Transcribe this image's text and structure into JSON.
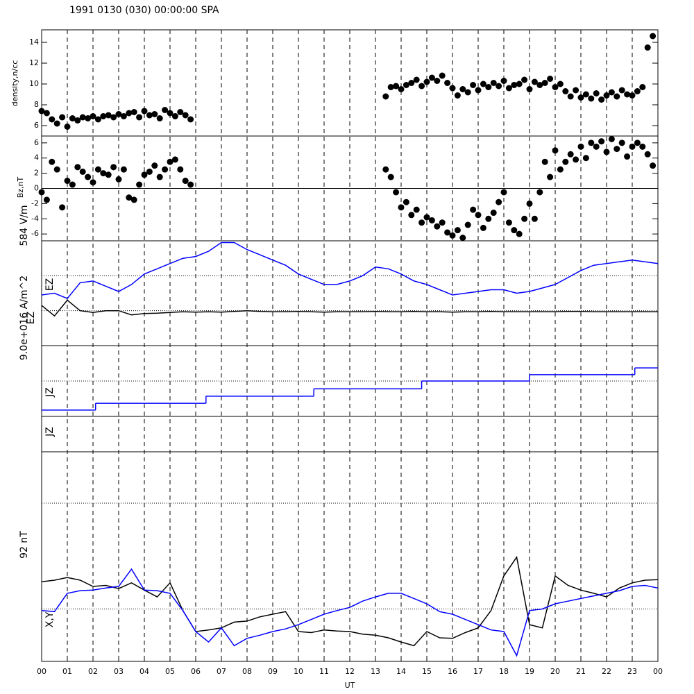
{
  "title": "1991 0130 (030) 00:00:00 SPA",
  "x_axis": {
    "label": "UT",
    "xlim": [
      0,
      24
    ],
    "vgrid": "dashed",
    "xticks": [
      {
        "value": 0,
        "label": "00"
      },
      {
        "value": 1,
        "label": "01"
      },
      {
        "value": 2,
        "label": "02"
      },
      {
        "value": 3,
        "label": "03"
      },
      {
        "value": 4,
        "label": "04"
      },
      {
        "value": 5,
        "label": "05"
      },
      {
        "value": 6,
        "label": "06"
      },
      {
        "value": 7,
        "label": "07"
      },
      {
        "value": 8,
        "label": "08"
      },
      {
        "value": 9,
        "label": "09"
      },
      {
        "value": 10,
        "label": "10"
      },
      {
        "value": 11,
        "label": "11"
      },
      {
        "value": 12,
        "label": "12"
      },
      {
        "value": 13,
        "label": "13"
      },
      {
        "value": 14,
        "label": "14"
      },
      {
        "value": 15,
        "label": "15"
      },
      {
        "value": 16,
        "label": "16"
      },
      {
        "value": 17,
        "label": "17"
      },
      {
        "value": 18,
        "label": "18"
      },
      {
        "value": 19,
        "label": "19"
      },
      {
        "value": 20,
        "label": "20"
      },
      {
        "value": 21,
        "label": "21"
      },
      {
        "value": 22,
        "label": "22"
      },
      {
        "value": 23,
        "label": "23"
      },
      {
        "value": 24,
        "label": "00"
      }
    ]
  },
  "chart_data": [
    {
      "type": "scatter",
      "ylabel": "density,n/cc",
      "color": "#000000",
      "ylim": [
        5,
        15.2
      ],
      "yticks": [
        6,
        8,
        10,
        12,
        14
      ],
      "x": [
        0,
        0.2,
        0.4,
        0.6,
        0.8,
        1,
        1.2,
        1.4,
        1.6,
        1.8,
        2,
        2.2,
        2.4,
        2.6,
        2.8,
        3,
        3.2,
        3.4,
        3.6,
        3.8,
        4,
        4.2,
        4.4,
        4.6,
        4.8,
        5,
        5.2,
        5.4,
        5.6,
        5.8,
        13.4,
        13.6,
        13.8,
        14,
        14.2,
        14.4,
        14.6,
        14.8,
        15,
        15.2,
        15.4,
        15.6,
        15.8,
        16,
        16.2,
        16.4,
        16.6,
        16.8,
        17,
        17.2,
        17.4,
        17.6,
        17.8,
        18,
        18.2,
        18.4,
        18.6,
        18.8,
        19,
        19.2,
        19.4,
        19.6,
        19.8,
        20,
        20.2,
        20.4,
        20.6,
        20.8,
        21,
        21.2,
        21.4,
        21.6,
        21.8,
        22,
        22.2,
        22.4,
        22.6,
        22.8,
        23,
        23.2,
        23.4,
        23.6,
        23.8
      ],
      "values": [
        7.4,
        7.2,
        6.6,
        6.2,
        6.8,
        5.9,
        6.7,
        6.5,
        6.8,
        6.7,
        6.9,
        6.6,
        6.9,
        7.0,
        6.8,
        7.1,
        6.9,
        7.2,
        7.3,
        6.8,
        7.4,
        7.0,
        7.1,
        6.7,
        7.5,
        7.2,
        6.9,
        7.3,
        7.0,
        6.6,
        8.8,
        9.7,
        9.8,
        9.5,
        9.9,
        10.1,
        10.4,
        9.8,
        10.2,
        10.6,
        10.3,
        10.8,
        10.1,
        9.6,
        8.9,
        9.5,
        9.2,
        9.9,
        9.4,
        10.0,
        9.7,
        10.1,
        9.8,
        10.3,
        9.6,
        9.9,
        10.0,
        10.4,
        9.5,
        10.2,
        9.9,
        10.1,
        10.5,
        9.7,
        10.0,
        9.3,
        8.8,
        9.4,
        8.7,
        9.0,
        8.6,
        9.1,
        8.5,
        8.9,
        9.2,
        8.8,
        9.4,
        9.0,
        8.9,
        9.3,
        9.7,
        13.5,
        14.6
      ]
    },
    {
      "type": "scatter",
      "ylabel": "Bz,nT",
      "color": "#000000",
      "ylim": [
        -6.9,
        6.9
      ],
      "yticks": [
        -6,
        -4,
        -2,
        0,
        2,
        4,
        6
      ],
      "zero_line": 0,
      "x": [
        0,
        0.2,
        0.4,
        0.6,
        0.8,
        1,
        1.2,
        1.4,
        1.6,
        1.8,
        2,
        2.2,
        2.4,
        2.6,
        2.8,
        3,
        3.2,
        3.4,
        3.6,
        3.8,
        4,
        4.2,
        4.4,
        4.6,
        4.8,
        5,
        5.2,
        5.4,
        5.6,
        5.8,
        13.4,
        13.6,
        13.8,
        14,
        14.2,
        14.4,
        14.6,
        14.8,
        15,
        15.2,
        15.4,
        15.6,
        15.8,
        16,
        16.2,
        16.4,
        16.6,
        16.8,
        17,
        17.2,
        17.4,
        17.6,
        17.8,
        18,
        18.2,
        18.4,
        18.6,
        18.8,
        19,
        19.2,
        19.4,
        19.6,
        19.8,
        20,
        20.2,
        20.4,
        20.6,
        20.8,
        21,
        21.2,
        21.4,
        21.6,
        21.8,
        22,
        22.2,
        22.4,
        22.6,
        22.8,
        23,
        23.2,
        23.4,
        23.6,
        23.8
      ],
      "values": [
        -0.5,
        -1.5,
        3.5,
        2.5,
        -2.5,
        1.0,
        0.5,
        2.8,
        2.2,
        1.5,
        0.8,
        2.5,
        2.0,
        1.8,
        2.8,
        1.2,
        2.5,
        -1.2,
        -1.5,
        0.5,
        1.8,
        2.2,
        3.0,
        1.5,
        2.5,
        3.5,
        3.8,
        2.5,
        1.0,
        0.5,
        2.5,
        1.5,
        -0.5,
        -2.5,
        -1.8,
        -3.5,
        -2.8,
        -4.5,
        -3.8,
        -4.2,
        -5.0,
        -4.5,
        -5.8,
        -6.2,
        -5.5,
        -6.5,
        -4.8,
        -2.8,
        -3.5,
        -5.2,
        -4.0,
        -3.2,
        -1.8,
        -0.5,
        -4.5,
        -5.5,
        -6.0,
        -4.0,
        -2.0,
        -4.0,
        -0.5,
        3.5,
        1.5,
        5.0,
        2.5,
        3.5,
        4.5,
        3.8,
        5.5,
        4.0,
        6.0,
        5.5,
        6.2,
        4.8,
        6.5,
        5.2,
        6.0,
        4.2,
        5.5,
        6.0,
        5.5,
        4.5,
        3.0
      ]
    },
    {
      "type": "line",
      "scale_label": "584 V/m",
      "ylim": [
        0,
        3
      ],
      "dotted_lines": [
        1,
        2
      ],
      "x": [
        0,
        0.5,
        1,
        1.5,
        2,
        2.5,
        3,
        3.5,
        4,
        4.5,
        5,
        5.5,
        6,
        6.5,
        7,
        7.5,
        8,
        8.5,
        9,
        9.5,
        10,
        10.5,
        11,
        11.5,
        12,
        12.5,
        13,
        13.5,
        14,
        14.5,
        15,
        15.5,
        16,
        16.5,
        17,
        17.5,
        18,
        18.5,
        19,
        19.5,
        20,
        20.5,
        21,
        21.5,
        22,
        22.5,
        23,
        23.5,
        24
      ],
      "series": [
        {
          "name": "EZ",
          "color": "#0000ff",
          "values": [
            1.45,
            1.5,
            1.35,
            1.8,
            1.85,
            1.7,
            1.55,
            1.75,
            2.05,
            2.2,
            2.35,
            2.5,
            2.55,
            2.7,
            2.95,
            2.95,
            2.75,
            2.6,
            2.45,
            2.3,
            2.05,
            1.9,
            1.75,
            1.75,
            1.85,
            2.0,
            2.25,
            2.2,
            2.05,
            1.85,
            1.75,
            1.6,
            1.45,
            1.5,
            1.55,
            1.6,
            1.6,
            1.5,
            1.55,
            1.65,
            1.75,
            1.95,
            2.15,
            2.3,
            2.35,
            2.4,
            2.45,
            2.4,
            2.35
          ]
        },
        {
          "name": "EZ",
          "color": "#000000",
          "values": [
            1.15,
            0.85,
            1.3,
            1.0,
            0.95,
            1.0,
            1.0,
            0.88,
            0.92,
            0.93,
            0.95,
            0.97,
            0.96,
            0.97,
            0.96,
            0.98,
            1.0,
            0.98,
            0.97,
            0.97,
            0.98,
            0.97,
            0.96,
            0.97,
            0.97,
            0.97,
            0.98,
            0.97,
            0.97,
            0.98,
            0.97,
            0.97,
            0.96,
            0.97,
            0.97,
            0.98,
            0.97,
            0.97,
            0.97,
            0.97,
            0.97,
            0.98,
            0.98,
            0.97,
            0.97,
            0.97,
            0.97,
            0.97,
            0.97
          ]
        }
      ]
    },
    {
      "type": "step",
      "scale_label": "9.0e+016 A/m^2",
      "series_labels": [
        "JZ",
        "JZ"
      ],
      "ylim": [
        0,
        2
      ],
      "dotted_lines": [
        1
      ],
      "x": [
        0,
        2.1,
        6.4,
        10.6,
        14.8,
        19,
        23.1
      ],
      "series": [
        {
          "color": "#0000ff",
          "values": [
            0.18,
            0.37,
            0.57,
            0.78,
            1.0,
            1.18,
            1.37
          ]
        }
      ]
    },
    {
      "type": "line",
      "scale_label": "92 nT",
      "series_label": "X,Y",
      "ylim": [
        0,
        2
      ],
      "dotted_lines": [
        1
      ],
      "x": [
        0,
        0.5,
        1,
        1.5,
        2,
        2.5,
        3,
        3.5,
        4,
        4.5,
        5,
        5.5,
        6,
        6.5,
        7,
        7.5,
        8,
        8.5,
        9,
        9.5,
        10,
        10.5,
        11,
        11.5,
        12,
        12.5,
        13,
        13.5,
        14,
        14.5,
        15,
        15.5,
        16,
        16.5,
        17,
        17.5,
        18,
        18.5,
        19,
        19.5,
        20,
        20.5,
        21,
        21.5,
        22,
        22.5,
        23,
        23.5,
        24
      ],
      "series": [
        {
          "color": "#000000",
          "values": [
            1.52,
            1.55,
            1.6,
            1.55,
            1.43,
            1.45,
            1.39,
            1.5,
            1.36,
            1.23,
            1.5,
            0.97,
            0.57,
            0.6,
            0.64,
            0.75,
            0.77,
            0.85,
            0.9,
            0.95,
            0.57,
            0.55,
            0.6,
            0.58,
            0.57,
            0.52,
            0.5,
            0.45,
            0.37,
            0.3,
            0.57,
            0.45,
            0.44,
            0.55,
            0.64,
            0.97,
            1.63,
            1.99,
            0.7,
            0.64,
            1.63,
            1.45,
            1.36,
            1.3,
            1.23,
            1.4,
            1.5,
            1.55,
            1.56
          ]
        },
        {
          "color": "#0000ff",
          "values": [
            0.97,
            0.95,
            1.3,
            1.35,
            1.36,
            1.4,
            1.43,
            1.76,
            1.36,
            1.35,
            1.3,
            0.97,
            0.57,
            0.37,
            0.64,
            0.3,
            0.44,
            0.5,
            0.57,
            0.62,
            0.7,
            0.8,
            0.9,
            0.97,
            1.03,
            1.15,
            1.23,
            1.3,
            1.3,
            1.2,
            1.1,
            0.95,
            0.9,
            0.8,
            0.7,
            0.6,
            0.57,
            0.11,
            0.97,
            1.0,
            1.1,
            1.15,
            1.2,
            1.25,
            1.3,
            1.35,
            1.43,
            1.45,
            1.4
          ]
        }
      ]
    }
  ]
}
